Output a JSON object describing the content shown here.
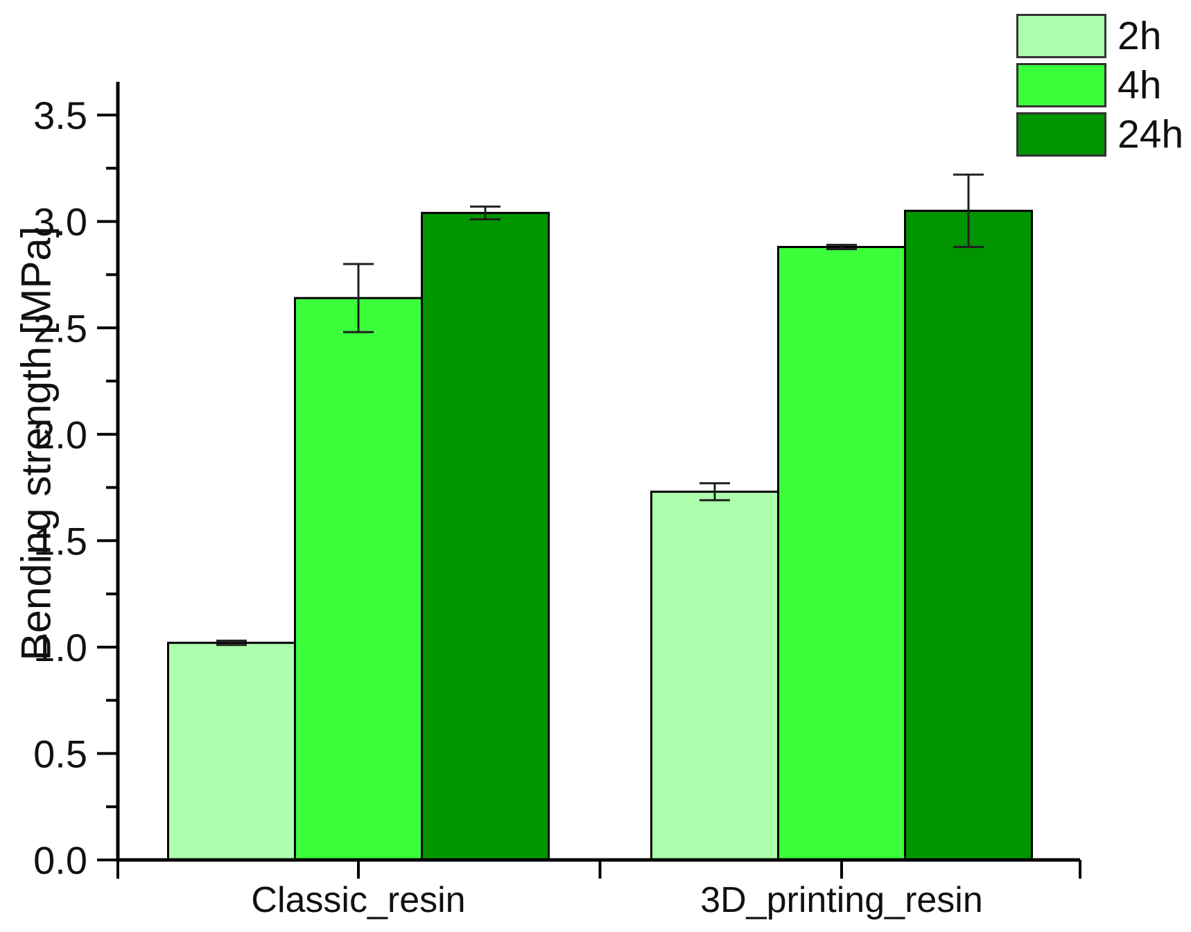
{
  "chart_data": {
    "type": "bar",
    "title": "",
    "ylabel": "Bending strength [MPa]",
    "xlabel": "",
    "categories": [
      "Classic_resin",
      "3D_printing_resin"
    ],
    "series": [
      {
        "name": "2h",
        "color": "#adffad",
        "values": [
          1.02,
          1.73
        ],
        "errors": [
          0.01,
          0.04
        ]
      },
      {
        "name": "4h",
        "color": "#3aff3a",
        "values": [
          2.64,
          2.88
        ],
        "errors": [
          0.16,
          0.01
        ]
      },
      {
        "name": "24h",
        "color": "#009400",
        "values": [
          3.04,
          3.05
        ],
        "errors": [
          0.03,
          0.17
        ]
      }
    ],
    "ylim": [
      0,
      3.65
    ],
    "yticks_major": [
      0,
      0.5,
      1,
      1.5,
      2,
      2.5,
      3,
      3.5
    ],
    "yticks_minor": [
      0.25,
      0.75,
      1.25,
      1.75,
      2.25,
      2.75,
      3.25
    ],
    "ytick_decimals": 1,
    "grid": false,
    "legend_position": "top-right",
    "colors": {
      "background": "#ffffff",
      "axis": "#000000",
      "bar_outline": "#000000",
      "error_bar": "#1f1f1f",
      "text": "#111111",
      "legend_swatch_border": "#333333"
    }
  }
}
